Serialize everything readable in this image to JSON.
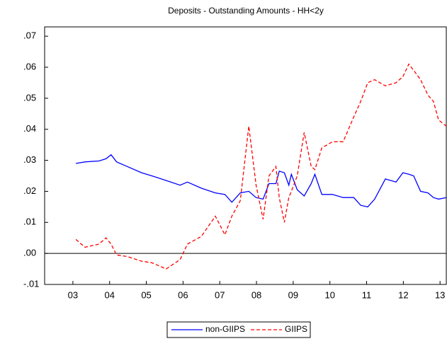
{
  "chart_data": {
    "type": "line",
    "title": "Deposits - Outstanding Amounts - HH<2y",
    "x": [
      2003.58,
      2003.83,
      2004.21,
      2004.4,
      2004.54,
      2004.69,
      2004.98,
      2005.37,
      2005.65,
      2006.04,
      2006.42,
      2006.62,
      2007.0,
      2007.38,
      2007.64,
      2007.83,
      2008.06,
      2008.29,
      2008.49,
      2008.68,
      2008.84,
      2009.03,
      2009.12,
      2009.26,
      2009.38,
      2009.45,
      2009.61,
      2009.8,
      2009.99,
      2010.09,
      2010.28,
      2010.57,
      2010.86,
      2011.15,
      2011.34,
      2011.53,
      2011.72,
      2012.01,
      2012.3,
      2012.49,
      2012.65,
      2012.78,
      2012.97,
      2013.17,
      2013.32,
      2013.46,
      2013.67
    ],
    "series": [
      {
        "name": "non-GIIPS",
        "color": "#0000ff",
        "dash": false,
        "values": [
          0.029,
          0.0295,
          0.0298,
          0.0305,
          0.0318,
          0.0295,
          0.028,
          0.026,
          0.025,
          0.0235,
          0.022,
          0.023,
          0.021,
          0.0195,
          0.019,
          0.0165,
          0.0195,
          0.02,
          0.018,
          0.0175,
          0.0225,
          0.0225,
          0.0265,
          0.026,
          0.022,
          0.0255,
          0.0205,
          0.0185,
          0.0225,
          0.0255,
          0.019,
          0.019,
          0.018,
          0.018,
          0.0155,
          0.015,
          0.0175,
          0.024,
          0.023,
          0.026,
          0.0255,
          0.025,
          0.02,
          0.0195,
          0.018,
          0.0175,
          0.018
        ]
      },
      {
        "name": "GIIPS",
        "color": "#ff0000",
        "dash": true,
        "values": [
          0.0045,
          0.002,
          0.003,
          0.005,
          0.003,
          -0.0005,
          -0.001,
          -0.0025,
          -0.003,
          -0.005,
          -0.002,
          0.003,
          0.0055,
          0.012,
          0.006,
          0.012,
          0.017,
          0.041,
          0.022,
          0.011,
          0.025,
          0.028,
          0.018,
          0.01,
          0.018,
          0.02,
          0.025,
          0.039,
          0.028,
          0.027,
          0.034,
          0.036,
          0.036,
          0.044,
          0.049,
          0.055,
          0.056,
          0.054,
          0.055,
          0.057,
          0.061,
          0.059,
          0.056,
          0.051,
          0.049,
          0.043,
          0.041
        ]
      }
    ],
    "xlim": [
      2002.73,
      2013.67
    ],
    "xticks": [
      {
        "value": 2003.5,
        "label": "03"
      },
      {
        "value": 2004.5,
        "label": "04"
      },
      {
        "value": 2005.5,
        "label": "05"
      },
      {
        "value": 2006.5,
        "label": "06"
      },
      {
        "value": 2007.5,
        "label": "07"
      },
      {
        "value": 2008.5,
        "label": "08"
      },
      {
        "value": 2009.5,
        "label": "09"
      },
      {
        "value": 2010.5,
        "label": "10"
      },
      {
        "value": 2011.5,
        "label": "11"
      },
      {
        "value": 2012.5,
        "label": "12"
      },
      {
        "value": 2013.5,
        "label": "13"
      }
    ],
    "ylim": [
      -0.01,
      0.073
    ],
    "yticks": [
      {
        "value": -0.01,
        "label": "-.01"
      },
      {
        "value": 0,
        "label": ".00"
      },
      {
        "value": 0.01,
        "label": ".01"
      },
      {
        "value": 0.02,
        "label": ".02"
      },
      {
        "value": 0.03,
        "label": ".03"
      },
      {
        "value": 0.04,
        "label": ".04"
      },
      {
        "value": 0.05,
        "label": ".05"
      },
      {
        "value": 0.06,
        "label": ".06"
      },
      {
        "value": 0.07,
        "label": ".07"
      }
    ],
    "zero_line": true,
    "grid": false
  }
}
